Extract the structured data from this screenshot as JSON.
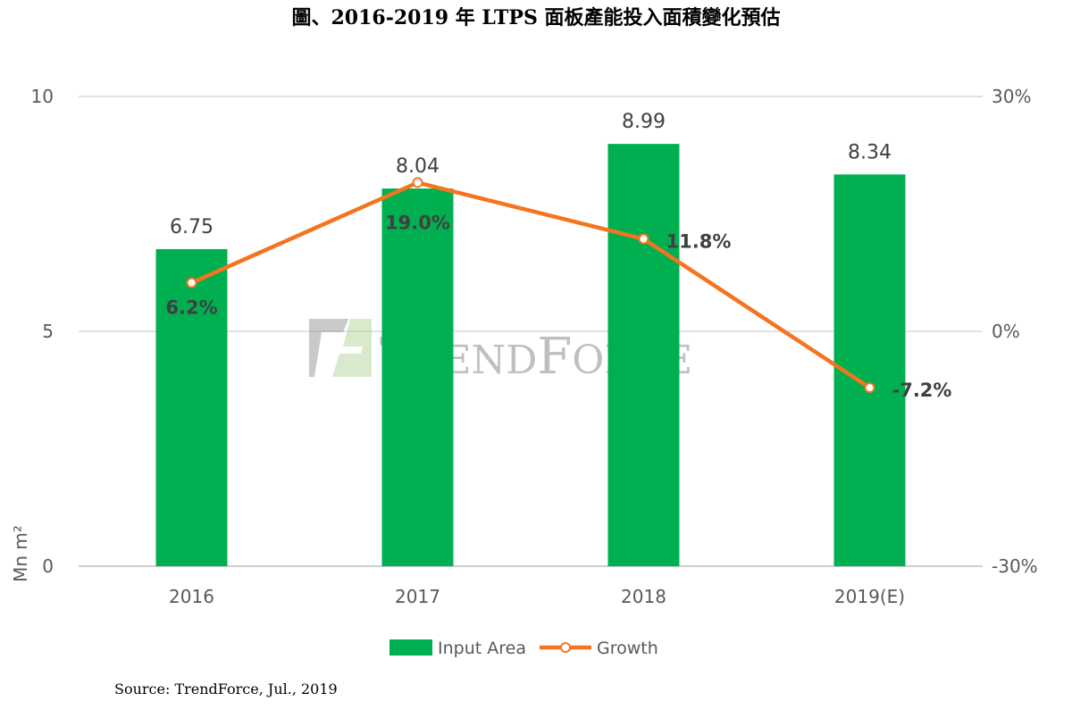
{
  "title": "圖、2016-2019 年 LTPS 面板產能投入面積變化預估",
  "source": "Source: TrendForce, Jul., 2019",
  "watermark": "TRENDFORCE",
  "chart_data": {
    "type": "bar+line",
    "title": "圖、2016-2019 年 LTPS 面板產能投入面積變化預估",
    "categories": [
      "2016",
      "2017",
      "2018",
      "2019(E)"
    ],
    "ylabel": "Mn m²",
    "ylim": [
      0,
      10
    ],
    "yticks": [
      "0",
      "5",
      "10"
    ],
    "y2lim": [
      -30,
      30
    ],
    "y2ticks": [
      "-30%",
      "0%",
      "30%"
    ],
    "grid": true,
    "legend": "bottom",
    "series": [
      {
        "name": "Input Area",
        "type": "bar",
        "axis": "left",
        "values": [
          6.75,
          8.04,
          8.99,
          8.34
        ],
        "labels": [
          "6.75",
          "8.04",
          "8.99",
          "8.34"
        ],
        "color": "#00b050"
      },
      {
        "name": "Growth",
        "type": "line",
        "axis": "right",
        "values": [
          6.2,
          19.0,
          11.8,
          -7.2
        ],
        "labels": [
          "6.2%",
          "19.0%",
          "11.8%",
          "-7.2%"
        ],
        "color": "#f4741f"
      }
    ]
  }
}
